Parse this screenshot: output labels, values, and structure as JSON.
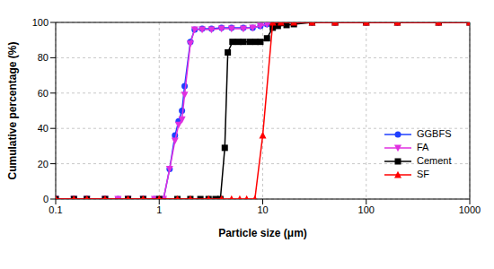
{
  "chart_data": {
    "type": "scatter",
    "x_label": "Particle size (μm)",
    "y_label": "Cumulative percentage (%)",
    "log": "x",
    "xlim": [
      0.1,
      1000
    ],
    "xticks": [
      0.1,
      1,
      10,
      100,
      1000
    ],
    "ylim": [
      0,
      100
    ],
    "yticks": [
      0,
      20,
      40,
      60,
      80,
      100
    ],
    "grid": true,
    "legend": "lower right",
    "line_style": "solid",
    "series": [
      {
        "name": "GGBFS",
        "color": "#1f3fff",
        "marker": "circle",
        "x": [
          0.1,
          0.15,
          0.2,
          0.3,
          0.4,
          0.5,
          0.7,
          0.9,
          1.1,
          1.26,
          1.42,
          1.54,
          1.66,
          1.76,
          2.0,
          2.2,
          2.6,
          3.2,
          4,
          5,
          6.5,
          8,
          9.5,
          11,
          15,
          20,
          30,
          50,
          100,
          200,
          500,
          1000
        ],
        "values": [
          0,
          0,
          0,
          0,
          0,
          0,
          0,
          0,
          0,
          17,
          36,
          44,
          50,
          64,
          89,
          96,
          96.5,
          96.5,
          97,
          97,
          97,
          97,
          98,
          99,
          100,
          100,
          100,
          100,
          100,
          100,
          100,
          100
        ]
      },
      {
        "name": "FA",
        "color": "#e030e0",
        "marker": "triangle-down",
        "x": [
          0.1,
          0.15,
          0.2,
          0.3,
          0.4,
          0.5,
          0.7,
          0.9,
          1.1,
          1.26,
          1.42,
          1.54,
          1.66,
          1.76,
          2.0,
          2.2,
          2.6,
          3.2,
          4,
          5,
          6.5,
          8,
          9.5,
          11,
          15,
          20,
          30,
          50,
          100,
          200,
          500,
          1000
        ],
        "values": [
          0,
          0,
          0,
          0,
          0,
          0,
          0,
          0,
          0,
          17,
          33,
          42,
          45,
          59,
          88,
          96,
          96,
          96,
          96.5,
          96.5,
          96.5,
          97,
          98,
          99,
          100,
          100,
          100,
          100,
          100,
          100,
          100,
          100
        ]
      },
      {
        "name": "Cement",
        "color": "#000000",
        "marker": "square",
        "x": [
          0.1,
          0.15,
          0.2,
          0.3,
          0.5,
          0.7,
          1,
          1.5,
          2,
          2.5,
          3,
          3.5,
          3.9,
          4.3,
          4.6,
          5.1,
          5.8,
          6.5,
          7.5,
          8.5,
          9.5,
          11,
          12.5,
          14,
          17,
          20,
          30,
          50,
          100,
          200,
          500,
          1000
        ],
        "values": [
          0,
          0,
          0,
          0,
          0,
          0,
          0,
          0,
          0,
          0,
          0,
          0,
          0,
          29,
          83,
          89,
          89,
          89,
          89,
          89,
          89,
          91,
          97,
          98,
          98.5,
          99,
          100,
          100,
          100,
          100,
          100,
          100
        ]
      },
      {
        "name": "SF",
        "color": "#ff0000",
        "marker": "triangle-up",
        "x": [
          0.1,
          0.15,
          0.2,
          0.3,
          0.5,
          0.7,
          1,
          1.5,
          2,
          3,
          4,
          5,
          6,
          7,
          8.4,
          10,
          12.5,
          15,
          20,
          30,
          50,
          100,
          200,
          500,
          1000
        ],
        "values": [
          0,
          0,
          0,
          0,
          0,
          0,
          0,
          0,
          0,
          0,
          0,
          0,
          0,
          0,
          0,
          36,
          100,
          100,
          100,
          100,
          100,
          100,
          100,
          100,
          100
        ]
      }
    ]
  }
}
